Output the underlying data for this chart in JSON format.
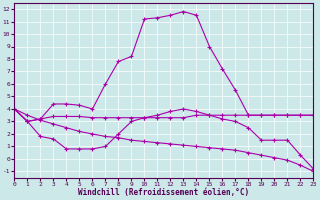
{
  "xlabel": "Windchill (Refroidissement éolien,°C)",
  "bg_color": "#cce8e8",
  "grid_color": "#ffffff",
  "line_color": "#aa00aa",
  "spine_color": "#550055",
  "xlim": [
    0,
    23
  ],
  "ylim": [
    -1.5,
    12.5
  ],
  "xticks": [
    0,
    1,
    2,
    3,
    4,
    5,
    6,
    7,
    8,
    9,
    10,
    11,
    12,
    13,
    14,
    15,
    16,
    17,
    18,
    19,
    20,
    21,
    22,
    23
  ],
  "yticks": [
    -1,
    0,
    1,
    2,
    3,
    4,
    5,
    6,
    7,
    8,
    9,
    10,
    11,
    12
  ],
  "line1_x": [
    0,
    1,
    2,
    3,
    4,
    5,
    6,
    7,
    8,
    9,
    10,
    11,
    12,
    13,
    14,
    15,
    16,
    17,
    18,
    19,
    20,
    21,
    22,
    23
  ],
  "line1_y": [
    4.0,
    3.0,
    3.2,
    4.4,
    4.4,
    4.3,
    4.0,
    6.0,
    7.8,
    8.2,
    11.2,
    11.3,
    11.5,
    11.8,
    11.5,
    9.0,
    7.2,
    5.5,
    3.5,
    3.5,
    3.5,
    3.5,
    3.5,
    3.5
  ],
  "line2_x": [
    0,
    1,
    2,
    3,
    4,
    5,
    6,
    7,
    8,
    9,
    10,
    11,
    12,
    13,
    14,
    15,
    16,
    17,
    18,
    19,
    20,
    21,
    22,
    23
  ],
  "line2_y": [
    4.0,
    3.0,
    3.2,
    3.4,
    3.4,
    3.4,
    3.3,
    3.3,
    3.3,
    3.3,
    3.3,
    3.3,
    3.3,
    3.3,
    3.5,
    3.5,
    3.5,
    3.5,
    3.5,
    3.5,
    3.5,
    3.5,
    3.5,
    3.5
  ],
  "line3_x": [
    0,
    1,
    2,
    3,
    4,
    5,
    6,
    7,
    8,
    9,
    10,
    11,
    12,
    13,
    14,
    15,
    16,
    17,
    18,
    19,
    20,
    21,
    22,
    23
  ],
  "line3_y": [
    4.0,
    3.0,
    1.8,
    1.6,
    0.8,
    0.8,
    0.8,
    1.0,
    2.0,
    3.0,
    3.3,
    3.5,
    3.8,
    4.0,
    3.8,
    3.5,
    3.2,
    3.0,
    2.5,
    1.5,
    1.5,
    1.5,
    0.3,
    -0.8
  ],
  "line4_x": [
    0,
    1,
    2,
    3,
    4,
    5,
    6,
    7,
    8,
    9,
    10,
    11,
    12,
    13,
    14,
    15,
    16,
    17,
    18,
    19,
    20,
    21,
    22,
    23
  ],
  "line4_y": [
    4.0,
    3.5,
    3.1,
    2.8,
    2.5,
    2.2,
    2.0,
    1.8,
    1.7,
    1.5,
    1.4,
    1.3,
    1.2,
    1.1,
    1.0,
    0.9,
    0.8,
    0.7,
    0.5,
    0.3,
    0.1,
    -0.1,
    -0.5,
    -1.0
  ],
  "tick_fontsize": 4.5,
  "xlabel_fontsize": 5.5,
  "linewidth": 0.8,
  "markersize": 2.5
}
